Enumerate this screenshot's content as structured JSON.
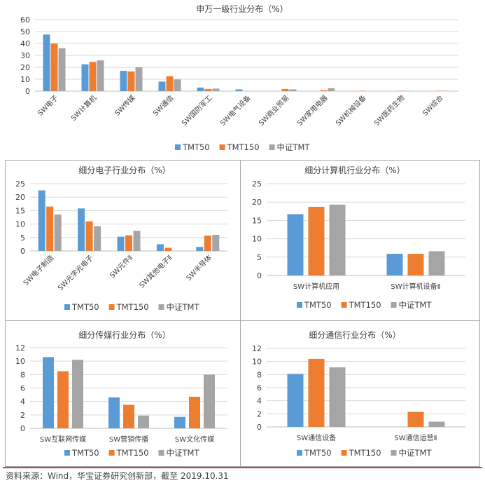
{
  "colors": {
    "TMT50": "#5B9BD5",
    "TMT150": "#ED7D31",
    "中证TMT": "#A5A5A5",
    "grid": "#D9D9D9",
    "frame": "#A6A6A6",
    "footer_rule": "#C00000"
  },
  "legend_labels": [
    "TMT50",
    "TMT150",
    "中证TMT"
  ],
  "source_text": "资料来源：Wind，华宝证券研究创新部，截至 2019.10.31",
  "chart_data": [
    {
      "type": "bar",
      "title": "申万一级行业分布（%）",
      "categories": [
        "SW电子",
        "SW计算机",
        "SW传媒",
        "SW通信",
        "SW国防军工",
        "SW电气设备",
        "SW商业贸易",
        "SW家用电器",
        "SW机械设备",
        "SW医药生物",
        "SW综合"
      ],
      "series": [
        {
          "name": "TMT50",
          "values": [
            47.5,
            22.5,
            17,
            8,
            3,
            1.5,
            0,
            0,
            0,
            0,
            0
          ]
        },
        {
          "name": "TMT150",
          "values": [
            40,
            24.5,
            16.5,
            12.5,
            1.8,
            0,
            1.8,
            0.8,
            0.3,
            0.3,
            0.3
          ]
        },
        {
          "name": "中证TMT",
          "values": [
            36,
            25.8,
            20,
            9.8,
            2.1,
            0,
            1.5,
            2.5,
            0,
            0.3,
            0.3
          ]
        }
      ],
      "yticks": [
        0,
        10,
        20,
        30,
        40,
        50,
        60
      ],
      "ylim": [
        0,
        60
      ],
      "grid": true,
      "legend": "bottom",
      "label_rotation": -45
    },
    {
      "type": "bar",
      "title": "细分电子行业分布（%）",
      "categories": [
        "SW电子制造",
        "SW光学光电子",
        "SW元件Ⅱ",
        "SW其他电子Ⅱ",
        "SW半导体"
      ],
      "series": [
        {
          "name": "TMT50",
          "values": [
            22.5,
            15.8,
            5.3,
            2.5,
            1.5
          ]
        },
        {
          "name": "TMT150",
          "values": [
            16.5,
            11,
            5.8,
            1.2,
            5.7
          ]
        },
        {
          "name": "中证TMT",
          "values": [
            13.5,
            9.2,
            7.5,
            0,
            6
          ]
        }
      ],
      "yticks": [
        0,
        5,
        10,
        15,
        20,
        25
      ],
      "ylim": [
        0,
        25
      ],
      "grid": true,
      "legend": "bottom",
      "label_rotation": -45
    },
    {
      "type": "bar",
      "title": "细分计算机行业分布（%）",
      "categories": [
        "SW计算机应用",
        "SW计算机设备Ⅱ"
      ],
      "series": [
        {
          "name": "TMT50",
          "values": [
            16.7,
            5.9
          ]
        },
        {
          "name": "TMT150",
          "values": [
            18.7,
            5.9
          ]
        },
        {
          "name": "中证TMT",
          "values": [
            19.3,
            6.6
          ]
        }
      ],
      "yticks": [
        0,
        5,
        10,
        15,
        20,
        25
      ],
      "ylim": [
        0,
        25
      ],
      "grid": true,
      "legend": "bottom",
      "label_rotation": 0
    },
    {
      "type": "bar",
      "title": "细分传媒行业分布（%）",
      "categories": [
        "SW互联网传媒",
        "SW营销传播",
        "SW文化传媒"
      ],
      "series": [
        {
          "name": "TMT50",
          "values": [
            10.6,
            4.6,
            1.7
          ]
        },
        {
          "name": "TMT150",
          "values": [
            8.5,
            3.5,
            4.7
          ]
        },
        {
          "name": "中证TMT",
          "values": [
            10.2,
            1.9,
            8
          ]
        }
      ],
      "yticks": [
        0,
        2,
        4,
        6,
        8,
        10,
        12
      ],
      "ylim": [
        0,
        12
      ],
      "grid": true,
      "legend": "bottom",
      "label_rotation": 0
    },
    {
      "type": "bar",
      "title": "细分通信行业分布（%）",
      "categories": [
        "SW通信设备",
        "SW通信运营Ⅱ"
      ],
      "series": [
        {
          "name": "TMT50",
          "values": [
            8.1,
            0
          ]
        },
        {
          "name": "TMT150",
          "values": [
            10.4,
            2.3
          ]
        },
        {
          "name": "中证TMT",
          "values": [
            9.1,
            0.8
          ]
        }
      ],
      "yticks": [
        0,
        2,
        4,
        6,
        8,
        10,
        12
      ],
      "ylim": [
        0,
        12
      ],
      "grid": true,
      "legend": "bottom",
      "label_rotation": 0
    }
  ]
}
